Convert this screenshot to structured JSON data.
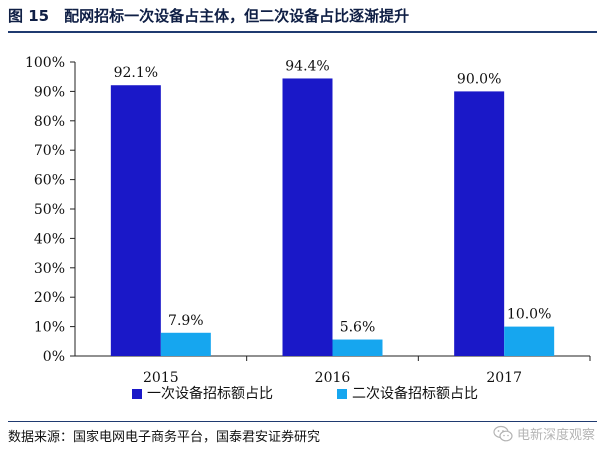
{
  "figure": {
    "title": "图 15　配网招标一次设备占主体，但二次设备占比逐渐提升",
    "source": "数据来源：国家电网电子商务平台，国泰君安证券研究",
    "watermark": "电新深度观察"
  },
  "colors": {
    "primary_series": "#1a18c8",
    "secondary_series": "#16a6ef",
    "rule": "#1f3a70"
  },
  "chart_data": {
    "type": "bar",
    "categories": [
      "2015",
      "2016",
      "2017"
    ],
    "series": [
      {
        "name": "一次设备招标额占比",
        "values": [
          92.1,
          94.4,
          90.0
        ],
        "labels": [
          "92.1%",
          "94.4%",
          "90.0%"
        ]
      },
      {
        "name": "二次设备招标额占比",
        "values": [
          7.9,
          5.6,
          10.0
        ],
        "labels": [
          "7.9%",
          "5.6%",
          "10.0%"
        ]
      }
    ],
    "ylim": [
      0,
      100
    ],
    "yticks": [
      0,
      10,
      20,
      30,
      40,
      50,
      60,
      70,
      80,
      90,
      100
    ],
    "ytick_labels": [
      "0%",
      "10%",
      "20%",
      "30%",
      "40%",
      "50%",
      "60%",
      "70%",
      "80%",
      "90%",
      "100%"
    ],
    "grid": false,
    "legend_position": "bottom"
  }
}
